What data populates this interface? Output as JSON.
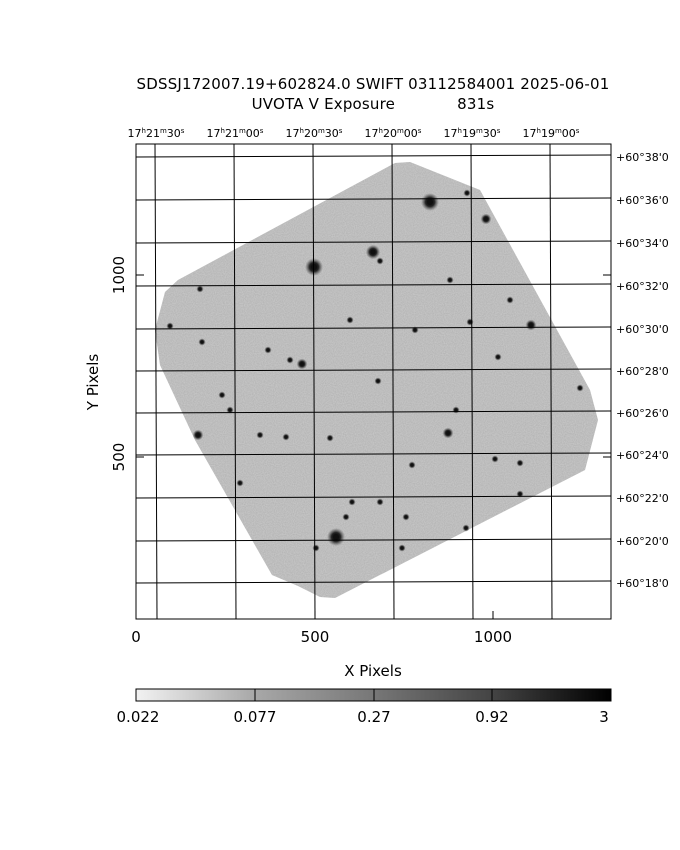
{
  "header": {
    "title_line1": "SDSSJ172007.19+602824.0 SWIFT 03112584001 2025-06-01",
    "title_line2": "UVOTA V Exposure",
    "exposure": "831s"
  },
  "axes": {
    "xlabel": "X Pixels",
    "ylabel": "Y Pixels",
    "x_ticks": [
      "0",
      "500",
      "1000"
    ],
    "y_ticks": [
      "500",
      "1000"
    ],
    "ra_ticks": [
      {
        "h": "17",
        "m": "21",
        "s": "30"
      },
      {
        "h": "17",
        "m": "21",
        "s": "00"
      },
      {
        "h": "17",
        "m": "20",
        "s": "30"
      },
      {
        "h": "17",
        "m": "20",
        "s": "00"
      },
      {
        "h": "17",
        "m": "19",
        "s": "30"
      },
      {
        "h": "17",
        "m": "19",
        "s": "00"
      }
    ],
    "dec_ticks": [
      "+60°38'0",
      "+60°36'0",
      "+60°34'0",
      "+60°32'0",
      "+60°30'0",
      "+60°28'0",
      "+60°26'0",
      "+60°24'0",
      "+60°22'0",
      "+60°20'0",
      "+60°18'0"
    ]
  },
  "colorbar": {
    "labels": [
      "0.022",
      "0.077",
      "0.27",
      "0.92",
      "3"
    ]
  },
  "colors": {
    "sky_background": "#b4b4b4",
    "grid": "#000000",
    "star": "#101010"
  }
}
